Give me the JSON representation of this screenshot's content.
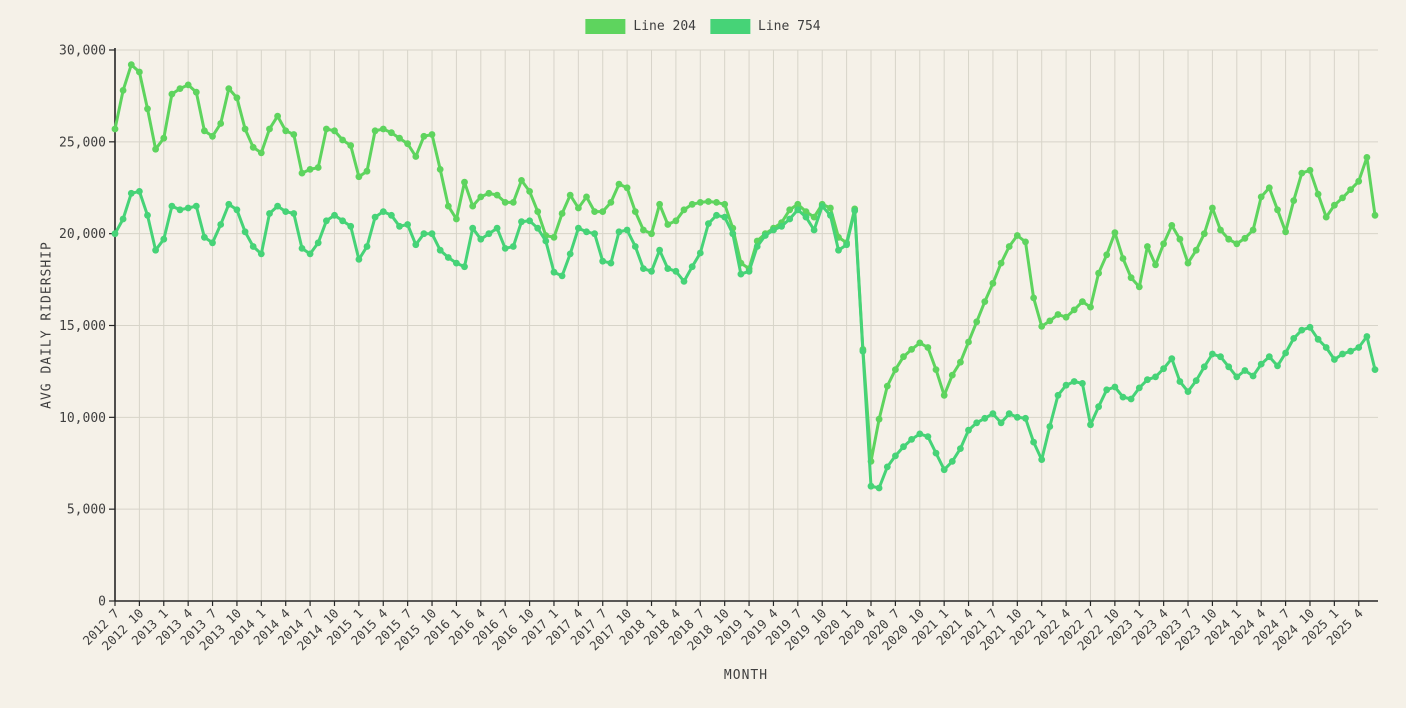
{
  "legend": {
    "items": [
      {
        "label": "Line 204",
        "color": "#5ed45e"
      },
      {
        "label": "Line 754",
        "color": "#46d377"
      }
    ]
  },
  "axes": {
    "x_label": "MONTH",
    "y_label": "AVG DAILY RIDERSHIP",
    "y_tick_labels": [
      "0",
      "5,000",
      "10,000",
      "15,000",
      "20,000",
      "25,000",
      "30,000"
    ],
    "x_tick_labels": [
      "2012 7",
      "2012 10",
      "2013 1",
      "2013 4",
      "2013 7",
      "2013 10",
      "2014 1",
      "2014 4",
      "2014 7",
      "2014 10",
      "2015 1",
      "2015 4",
      "2015 7",
      "2015 10",
      "2016 1",
      "2016 4",
      "2016 7",
      "2016 10",
      "2017 1",
      "2017 4",
      "2017 7",
      "2017 10",
      "2018 1",
      "2018 4",
      "2018 7",
      "2018 10",
      "2019 1",
      "2019 4",
      "2019 7",
      "2019 10",
      "2020 1",
      "2020 4",
      "2020 7",
      "2020 10",
      "2021 1",
      "2021 4",
      "2021 7",
      "2021 10",
      "2022 1",
      "2022 4",
      "2022 7",
      "2022 10",
      "2023 1",
      "2023 4",
      "2023 7",
      "2023 10",
      "2024 1",
      "2024 4",
      "2024 7",
      "2024 10",
      "2025 1",
      "2025 4"
    ]
  },
  "chart_data": {
    "type": "line",
    "title": "",
    "xlabel": "MONTH",
    "ylabel": "AVG DAILY RIDERSHIP",
    "ylim": [
      0,
      30000
    ],
    "grid": true,
    "legend_position": "top-center",
    "marker": "circle",
    "x_tick_every_months": 3,
    "x": [
      "2012-07",
      "2012-08",
      "2012-09",
      "2012-10",
      "2012-11",
      "2012-12",
      "2013-01",
      "2013-02",
      "2013-03",
      "2013-04",
      "2013-05",
      "2013-06",
      "2013-07",
      "2013-08",
      "2013-09",
      "2013-10",
      "2013-11",
      "2013-12",
      "2014-01",
      "2014-02",
      "2014-03",
      "2014-04",
      "2014-05",
      "2014-06",
      "2014-07",
      "2014-08",
      "2014-09",
      "2014-10",
      "2014-11",
      "2014-12",
      "2015-01",
      "2015-02",
      "2015-03",
      "2015-04",
      "2015-05",
      "2015-06",
      "2015-07",
      "2015-08",
      "2015-09",
      "2015-10",
      "2015-11",
      "2015-12",
      "2016-01",
      "2016-02",
      "2016-03",
      "2016-04",
      "2016-05",
      "2016-06",
      "2016-07",
      "2016-08",
      "2016-09",
      "2016-10",
      "2016-11",
      "2016-12",
      "2017-01",
      "2017-02",
      "2017-03",
      "2017-04",
      "2017-05",
      "2017-06",
      "2017-07",
      "2017-08",
      "2017-09",
      "2017-10",
      "2017-11",
      "2017-12",
      "2018-01",
      "2018-02",
      "2018-03",
      "2018-04",
      "2018-05",
      "2018-06",
      "2018-07",
      "2018-08",
      "2018-09",
      "2018-10",
      "2018-11",
      "2018-12",
      "2019-01",
      "2019-02",
      "2019-03",
      "2019-04",
      "2019-05",
      "2019-06",
      "2019-07",
      "2019-08",
      "2019-09",
      "2019-10",
      "2019-11",
      "2019-12",
      "2020-01",
      "2020-02",
      "2020-03",
      "2020-04",
      "2020-05",
      "2020-06",
      "2020-07",
      "2020-08",
      "2020-09",
      "2020-10",
      "2020-11",
      "2020-12",
      "2021-01",
      "2021-02",
      "2021-03",
      "2021-04",
      "2021-05",
      "2021-06",
      "2021-07",
      "2021-08",
      "2021-09",
      "2021-10",
      "2021-11",
      "2021-12",
      "2022-01",
      "2022-02",
      "2022-03",
      "2022-04",
      "2022-05",
      "2022-06",
      "2022-07",
      "2022-08",
      "2022-09",
      "2022-10",
      "2022-11",
      "2022-12",
      "2023-01",
      "2023-02",
      "2023-03",
      "2023-04",
      "2023-05",
      "2023-06",
      "2023-07",
      "2023-08",
      "2023-09",
      "2023-10",
      "2023-11",
      "2023-12",
      "2024-01",
      "2024-02",
      "2024-03",
      "2024-04",
      "2024-05",
      "2024-06",
      "2024-07",
      "2024-08",
      "2024-09",
      "2024-10",
      "2024-11",
      "2024-12",
      "2025-01",
      "2025-02",
      "2025-03",
      "2025-04",
      "2025-05",
      "2025-06"
    ],
    "series": [
      {
        "name": "Line 204",
        "color": "#5ed45e",
        "values": [
          25700,
          27800,
          29200,
          28800,
          26800,
          24600,
          25200,
          27600,
          27900,
          28100,
          27700,
          25600,
          25300,
          26000,
          27900,
          27400,
          25700,
          24700,
          24400,
          25700,
          26400,
          25600,
          25400,
          23300,
          23500,
          23600,
          25700,
          25600,
          25100,
          24800,
          23100,
          23400,
          25600,
          25700,
          25500,
          25200,
          24900,
          24200,
          25300,
          25400,
          23500,
          21500,
          20800,
          22800,
          21500,
          22000,
          22200,
          22100,
          21700,
          21700,
          22900,
          22300,
          21200,
          19900,
          19800,
          21100,
          22100,
          21400,
          22000,
          21200,
          21200,
          21700,
          22700,
          22500,
          21200,
          20200,
          20000,
          21600,
          20500,
          20700,
          21300,
          21600,
          21700,
          21750,
          21700,
          21600,
          20300,
          18400,
          18100,
          19600,
          20000,
          20300,
          20600,
          21300,
          21600,
          21200,
          20900,
          21600,
          21400,
          19800,
          19500,
          21350,
          13700,
          7600,
          9900,
          11700,
          12600,
          13300,
          13700,
          14050,
          13800,
          12600,
          11200,
          12300,
          13000,
          14100,
          15200,
          16300,
          17300,
          18400,
          19300,
          19900,
          19550,
          16500,
          14950,
          15250,
          15600,
          15450,
          15850,
          16300,
          16000,
          17850,
          18850,
          20050,
          18650,
          17600,
          17100,
          19300,
          18300,
          19450,
          20450,
          19700,
          18400,
          19100,
          20000,
          21400,
          20200,
          19700,
          19450,
          19750,
          20200,
          22000,
          22500,
          21300,
          20100,
          21800,
          23300,
          23450,
          22150,
          20900,
          21550,
          21950,
          22400,
          22850,
          24150,
          21000
        ]
      },
      {
        "name": "Line 754",
        "color": "#46d377",
        "values": [
          20000,
          20800,
          22200,
          22300,
          21000,
          19100,
          19700,
          21500,
          21300,
          21400,
          21500,
          19800,
          19500,
          20500,
          21600,
          21300,
          20100,
          19300,
          18900,
          21100,
          21500,
          21200,
          21100,
          19200,
          18900,
          19500,
          20700,
          21000,
          20700,
          20400,
          18600,
          19300,
          20900,
          21200,
          21000,
          20400,
          20500,
          19400,
          20000,
          20000,
          19100,
          18700,
          18400,
          18200,
          20300,
          19700,
          20000,
          20300,
          19200,
          19300,
          20650,
          20700,
          20300,
          19600,
          17900,
          17700,
          18900,
          20300,
          20100,
          20000,
          18500,
          18400,
          20100,
          20200,
          19300,
          18100,
          17950,
          19100,
          18100,
          17950,
          17400,
          18200,
          18950,
          20550,
          21000,
          20900,
          20000,
          17800,
          17950,
          19300,
          19900,
          20200,
          20400,
          20800,
          21300,
          20900,
          20200,
          21500,
          21000,
          19100,
          19400,
          21250,
          13600,
          6250,
          6150,
          7300,
          7900,
          8400,
          8800,
          9100,
          8950,
          8050,
          7150,
          7600,
          8300,
          9300,
          9700,
          9950,
          10200,
          9700,
          10200,
          10000,
          9950,
          8650,
          7700,
          9500,
          11200,
          11750,
          11950,
          11850,
          9600,
          10580,
          11500,
          11650,
          11100,
          11000,
          11600,
          12050,
          12200,
          12650,
          13200,
          11950,
          11400,
          12000,
          12750,
          13450,
          13300,
          12750,
          12200,
          12550,
          12250,
          12900,
          13300,
          12800,
          13500,
          14300,
          14750,
          14900,
          14250,
          13800,
          13150,
          13450,
          13600,
          13800,
          14400,
          12600
        ]
      }
    ],
    "style": {
      "background": "#f5f1e8",
      "grid_color": "#d7d4c9",
      "spine_color": "#262626",
      "text_color": "#3f3f3f",
      "line_width": 3,
      "marker_radius": 3.4
    }
  }
}
